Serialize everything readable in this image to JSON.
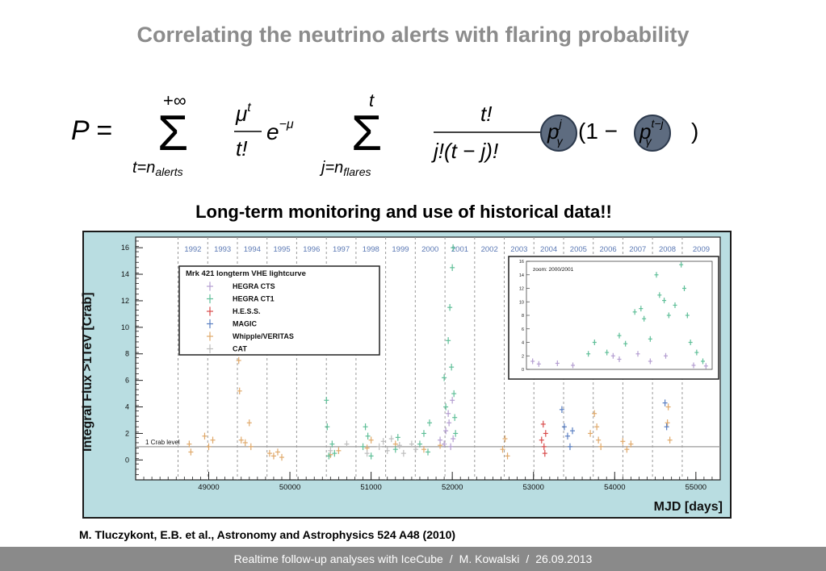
{
  "slide": {
    "title": "Correlating the neutrino alerts with flaring probability",
    "subtitle": "Long-term monitoring and use of historical data!!",
    "citation": "M. Tluczykont, E.B. et al., Astronomy and Astrophysics 524 A48 (2010)"
  },
  "formula": {
    "lhs": "P =",
    "sum1_upper": "+∞",
    "sum1_lower": "t=n",
    "sum1_lower_sub": "alerts",
    "sum2_upper": "t",
    "sum2_lower": "j=n",
    "sum2_lower_sub": "flares",
    "poisson_num": "μ",
    "poisson_num_sup": "t",
    "poisson_den": "t!",
    "exp": "e",
    "exp_sup": "−μ",
    "binom_num": "t!",
    "binom_den": "j!(t − j)!",
    "p1": "p",
    "p1_sup": "j",
    "p1_sub": "γ",
    "open": "(1 −",
    "p2": "p",
    "p2_sup": "t−j",
    "p2_sub": "γ",
    "close": ")"
  },
  "chart_data": {
    "type": "scatter",
    "title": "",
    "xlabel": "MJD [days]",
    "ylabel": "Integral Flux >1TeV [Crab]",
    "xlim": [
      48100,
      55300
    ],
    "ylim": [
      -1.5,
      16.8
    ],
    "x_ticks": [
      49000,
      50000,
      51000,
      52000,
      53000,
      54000,
      55000
    ],
    "y_ticks": [
      0,
      2,
      4,
      6,
      8,
      10,
      12,
      14,
      16
    ],
    "years": [
      "1992",
      "1993",
      "1994",
      "1995",
      "1996",
      "1997",
      "1998",
      "1999",
      "2000",
      "2001",
      "2002",
      "2003",
      "2004",
      "2005",
      "2006",
      "2007",
      "2008",
      "2009"
    ],
    "year_start_mjd": [
      48622,
      48988,
      49353,
      49718,
      50083,
      50449,
      50814,
      51179,
      51544,
      51910,
      52275,
      52640,
      53005,
      53371,
      53736,
      54101,
      54466,
      54832
    ],
    "reference_line": {
      "y": 1,
      "label": "1 Crab level"
    },
    "legend": {
      "title": "Mrk 421 longterm VHE lightcurve",
      "entries": [
        {
          "name": "HEGRA CTS",
          "color": "#b49ed1"
        },
        {
          "name": "HEGRA CT1",
          "color": "#5fbf98"
        },
        {
          "name": "H.E.S.S.",
          "color": "#d94b4b"
        },
        {
          "name": "MAGIC",
          "color": "#5a7fc2"
        },
        {
          "name": "Whipple/VERITAS",
          "color": "#e0a96a"
        },
        {
          "name": "CAT",
          "color": "#bdbdbd"
        }
      ]
    },
    "series": [
      {
        "name": "Whipple/VERITAS",
        "color": "#e0a96a",
        "points": [
          [
            48760,
            1.2
          ],
          [
            48780,
            0.6
          ],
          [
            48950,
            1.8
          ],
          [
            49000,
            1.0
          ],
          [
            49050,
            1.5
          ],
          [
            49370,
            7.5
          ],
          [
            49380,
            5.2
          ],
          [
            49400,
            1.5
          ],
          [
            49450,
            1.3
          ],
          [
            49500,
            2.8
          ],
          [
            49520,
            1.0
          ],
          [
            49750,
            0.5
          ],
          [
            49800,
            0.3
          ],
          [
            49850,
            0.6
          ],
          [
            49900,
            0.2
          ],
          [
            50500,
            0.4
          ],
          [
            50600,
            0.7
          ],
          [
            50950,
            0.9
          ],
          [
            51000,
            1.5
          ],
          [
            51300,
            1.2
          ],
          [
            51650,
            0.8
          ],
          [
            51850,
            1.1
          ],
          [
            52620,
            0.8
          ],
          [
            52650,
            1.6
          ],
          [
            52680,
            0.3
          ],
          [
            53700,
            2.0
          ],
          [
            53750,
            3.5
          ],
          [
            53780,
            2.5
          ],
          [
            53800,
            1.5
          ],
          [
            53830,
            1.0
          ],
          [
            54100,
            1.4
          ],
          [
            54150,
            0.8
          ],
          [
            54200,
            1.2
          ],
          [
            54650,
            2.8
          ],
          [
            54660,
            4.0
          ],
          [
            54680,
            1.5
          ]
        ]
      },
      {
        "name": "HEGRA CTS",
        "color": "#b49ed1",
        "points": [
          [
            51850,
            1.5
          ],
          [
            51900,
            1.2
          ],
          [
            51920,
            2.2
          ],
          [
            51950,
            3.5
          ],
          [
            51960,
            2.8
          ],
          [
            51980,
            1.0
          ],
          [
            52000,
            4.5
          ],
          [
            52010,
            1.6
          ]
        ]
      },
      {
        "name": "HEGRA CT1",
        "color": "#5fbf98",
        "points": [
          [
            50450,
            4.5
          ],
          [
            50460,
            2.5
          ],
          [
            50480,
            0.3
          ],
          [
            50520,
            1.2
          ],
          [
            50550,
            0.5
          ],
          [
            50900,
            1.0
          ],
          [
            50930,
            2.5
          ],
          [
            50960,
            1.8
          ],
          [
            51000,
            0.3
          ],
          [
            51300,
            0.8
          ],
          [
            51330,
            1.7
          ],
          [
            51600,
            1.2
          ],
          [
            51650,
            2.0
          ],
          [
            51700,
            0.6
          ],
          [
            51720,
            2.8
          ],
          [
            51900,
            6.2
          ],
          [
            51920,
            4.0
          ],
          [
            51950,
            9.0
          ],
          [
            51970,
            11.5
          ],
          [
            51990,
            7.0
          ],
          [
            52000,
            14.5
          ],
          [
            52010,
            16.0
          ],
          [
            52020,
            5.0
          ],
          [
            52030,
            3.2
          ],
          [
            52040,
            2.0
          ]
        ]
      },
      {
        "name": "H.E.S.S.",
        "color": "#d94b4b",
        "points": [
          [
            53100,
            1.5
          ],
          [
            53120,
            2.7
          ],
          [
            53140,
            0.5
          ],
          [
            53150,
            2.0
          ],
          [
            53130,
            1.0
          ]
        ]
      },
      {
        "name": "MAGIC",
        "color": "#5a7fc2",
        "points": [
          [
            53350,
            3.8
          ],
          [
            53380,
            2.5
          ],
          [
            53420,
            1.8
          ],
          [
            53450,
            1.0
          ],
          [
            53480,
            2.2
          ],
          [
            54620,
            4.3
          ],
          [
            54640,
            2.5
          ]
        ]
      },
      {
        "name": "CAT",
        "color": "#bdbdbd",
        "points": [
          [
            50500,
            0.7
          ],
          [
            50700,
            1.2
          ],
          [
            50950,
            0.5
          ],
          [
            51100,
            1.0
          ],
          [
            51150,
            1.4
          ],
          [
            51200,
            0.7
          ],
          [
            51250,
            1.6
          ],
          [
            51350,
            1.1
          ],
          [
            51400,
            0.5
          ],
          [
            51500,
            1.2
          ],
          [
            51550,
            0.8
          ]
        ]
      }
    ],
    "inset": {
      "title": "zoom: 2000/2001",
      "xlim": [
        51500,
        52100
      ],
      "ylim": [
        0,
        16
      ],
      "y_ticks": [
        0,
        2,
        4,
        6,
        8,
        10,
        12,
        14,
        16
      ],
      "series": [
        {
          "name": "HEGRA CT1",
          "color": "#5fbf98",
          "points": [
            [
              51700,
              2.3
            ],
            [
              51720,
              4.0
            ],
            [
              51760,
              2.5
            ],
            [
              51800,
              5.0
            ],
            [
              51820,
              3.8
            ],
            [
              51850,
              8.5
            ],
            [
              51870,
              9.0
            ],
            [
              51880,
              7.5
            ],
            [
              51900,
              4.5
            ],
            [
              51920,
              14.0
            ],
            [
              51930,
              11.0
            ],
            [
              51945,
              10.2
            ],
            [
              51960,
              8.0
            ],
            [
              51980,
              9.5
            ],
            [
              52000,
              15.5
            ],
            [
              52010,
              12.0
            ],
            [
              52020,
              8.0
            ],
            [
              52030,
              4.0
            ],
            [
              52050,
              2.5
            ],
            [
              52070,
              1.2
            ]
          ]
        },
        {
          "name": "HEGRA CTS",
          "color": "#b49ed1",
          "points": [
            [
              51520,
              1.2
            ],
            [
              51540,
              0.8
            ],
            [
              51600,
              0.9
            ],
            [
              51650,
              0.6
            ],
            [
              51780,
              2.0
            ],
            [
              51800,
              1.5
            ],
            [
              51860,
              2.3
            ],
            [
              51900,
              1.2
            ],
            [
              51950,
              2.0
            ],
            [
              52040,
              0.6
            ],
            [
              52080,
              0.5
            ]
          ]
        }
      ]
    }
  },
  "footer": {
    "talk": "Realtime follow-up analyses with IceCube",
    "separator": "/",
    "author": "M. Kowalski",
    "date": "26.09.2013"
  }
}
